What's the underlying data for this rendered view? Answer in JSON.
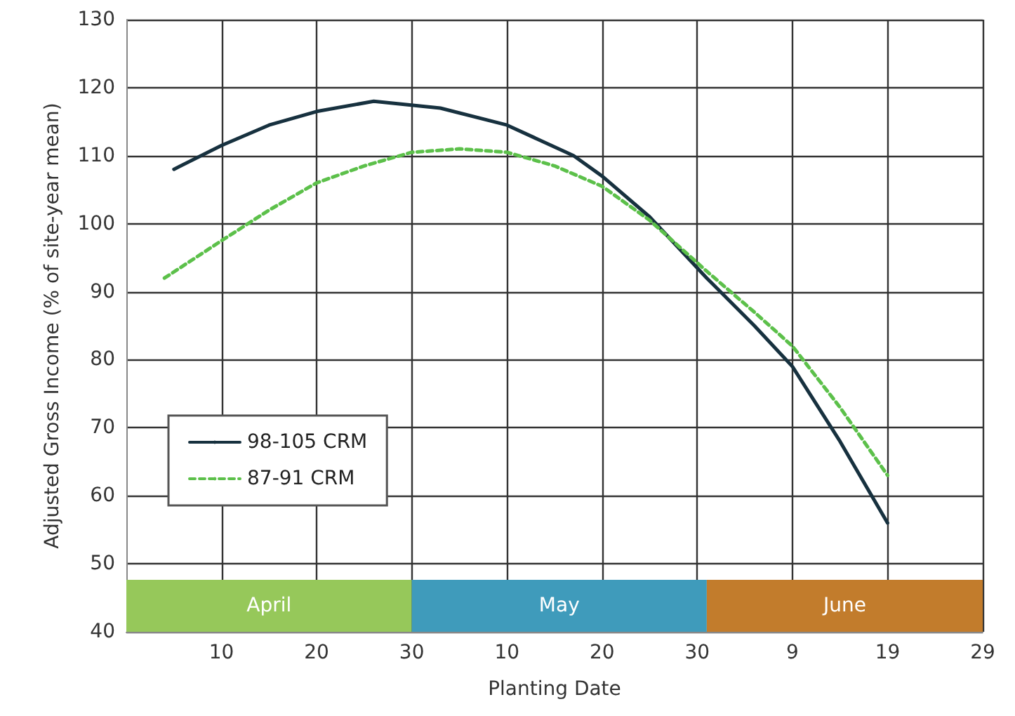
{
  "chart_data": {
    "type": "line",
    "xlabel": "Planting Date",
    "ylabel": "Adjusted Gross Income (% of site-year mean)",
    "xlim": [
      "--03-31",
      "--06-29"
    ],
    "xticks": [
      {
        "value": "--04-10",
        "label": "10"
      },
      {
        "value": "--04-20",
        "label": "20"
      },
      {
        "value": "--04-30",
        "label": "30"
      },
      {
        "value": "--05-10",
        "label": "10"
      },
      {
        "value": "--05-20",
        "label": "20"
      },
      {
        "value": "--05-30",
        "label": "30"
      },
      {
        "value": "--06-09",
        "label": "9"
      },
      {
        "value": "--06-19",
        "label": "19"
      },
      {
        "value": "--06-29",
        "label": "29"
      }
    ],
    "ylim": [
      40,
      130
    ],
    "yticks": [
      40,
      50,
      60,
      70,
      80,
      90,
      100,
      110,
      120,
      130
    ],
    "grid": true,
    "legend": "bottom left",
    "marker": "none",
    "series": [
      {
        "name": "98-105 CRM",
        "color": "#17313f",
        "line_style": "solid",
        "x": [
          "--04-05",
          "--04-10",
          "--04-15",
          "--04-20",
          "--04-26",
          "--05-03",
          "--05-10",
          "--05-17",
          "--05-20",
          "--05-25",
          "--05-31",
          "--06-05",
          "--06-09",
          "--06-14",
          "--06-19"
        ],
        "values": [
          108,
          111.5,
          114.5,
          116.5,
          118,
          117,
          114.5,
          110,
          107,
          101,
          92,
          85,
          79,
          68,
          56
        ]
      },
      {
        "name": "87-91 CRM",
        "color": "#5cc04a",
        "line_style": "dashed",
        "x": [
          "--04-04",
          "--04-10",
          "--04-15",
          "--04-20",
          "--04-25",
          "--04-30",
          "--05-05",
          "--05-10",
          "--05-15",
          "--05-20",
          "--05-25",
          "--05-31",
          "--06-05",
          "--06-09",
          "--06-14",
          "--06-19"
        ],
        "values": [
          92,
          97.5,
          102,
          106,
          108.5,
          110.5,
          111,
          110.5,
          108.5,
          105.5,
          100.5,
          93,
          87,
          82,
          73,
          63
        ]
      }
    ],
    "bands": [
      {
        "axis": "x",
        "from": "--03-31",
        "to": "--04-30",
        "label": "April",
        "color": "#96c85a"
      },
      {
        "axis": "x",
        "from": "--04-30",
        "to": "--05-31",
        "label": "May",
        "color": "#3f9bbb"
      },
      {
        "axis": "x",
        "from": "--05-31",
        "to": "--06-29",
        "label": "June",
        "color": "#c27c2c"
      }
    ]
  }
}
